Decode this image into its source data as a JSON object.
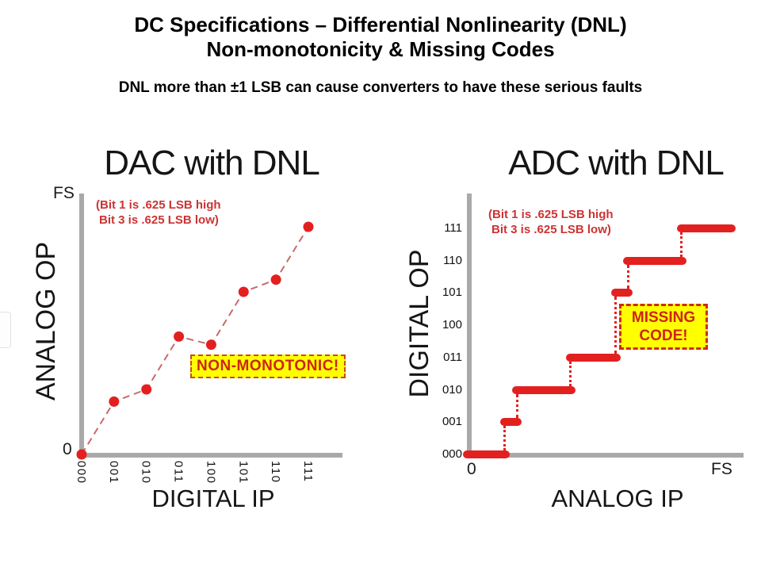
{
  "slide": {
    "title_line1": "DC Specifications – Differential Nonlinearity (DNL)",
    "title_line2": "Non-monotonicity & Missing Codes",
    "subtitle": "DNL more than ±1 LSB can cause converters to have these serious faults"
  },
  "colors": {
    "marker_red": "#e32020",
    "dashed_line_red": "#c96a6a",
    "annotation_red": "#cc3333",
    "callout_text_red": "#cc2418",
    "callout_yellow": "#ffff00",
    "axis_gray": "#a9a9a9",
    "text_black": "#000000"
  },
  "chart_data": [
    {
      "type": "scatter",
      "title": "DAC with DNL",
      "xlabel": "DIGITAL IP",
      "ylabel": "ANALOG OP",
      "y_top_label": "FS",
      "origin_label": "0",
      "annotation_line1": "(Bit 1 is .625 LSB high",
      "annotation_line2": "Bit 3 is .625 LSB low)",
      "callout": "NON-MONOTONIC!",
      "categories": [
        "000",
        "001",
        "010",
        "011",
        "100",
        "101",
        "110",
        "111"
      ],
      "values_lsb": [
        0,
        1.625,
        2,
        3.625,
        3.375,
        5,
        5.375,
        7
      ],
      "ylim": [
        0,
        8
      ],
      "line_style": "dashed",
      "marker": "circle",
      "grid": false
    },
    {
      "type": "line",
      "subtype": "staircase",
      "title": "ADC with DNL",
      "xlabel": "ANALOG IP",
      "ylabel": "DIGITAL OP",
      "x_left_label": "0",
      "x_right_label": "FS",
      "annotation_line1": "(Bit 1 is .625 LSB high",
      "annotation_line2": "Bit 3 is .625 LSB low)",
      "callout_line1": "MISSING",
      "callout_line2": "CODE!",
      "y_categories": [
        "000",
        "001",
        "010",
        "011",
        "100",
        "101",
        "110",
        "111"
      ],
      "missing_code": "100",
      "xlim_lsb": [
        0,
        8
      ],
      "steps": [
        {
          "code": "000",
          "level": 0,
          "x_start": 0,
          "x_end": 1.125
        },
        {
          "code": "001",
          "level": 1,
          "x_start": 1.125,
          "x_end": 1.5
        },
        {
          "code": "010",
          "level": 2,
          "x_start": 1.5,
          "x_end": 3.125
        },
        {
          "code": "011",
          "level": 3,
          "x_start": 3.125,
          "x_end": 4.5
        },
        {
          "code": "101",
          "level": 5,
          "x_start": 4.5,
          "x_end": 4.875
        },
        {
          "code": "110",
          "level": 6,
          "x_start": 4.875,
          "x_end": 6.5
        },
        {
          "code": "111",
          "level": 7,
          "x_start": 6.5,
          "x_end": 8
        }
      ]
    }
  ]
}
